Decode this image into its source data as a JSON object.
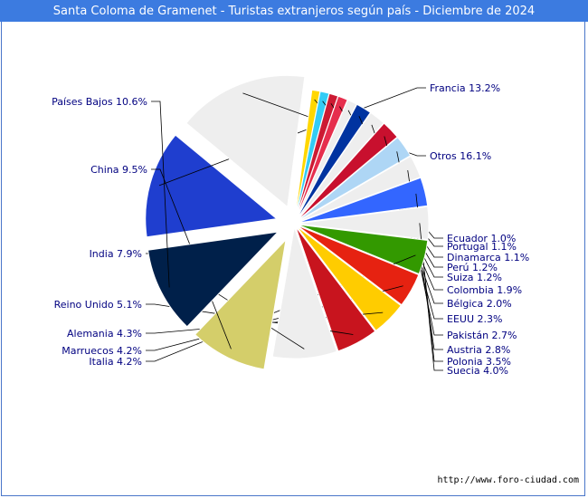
{
  "header": {
    "title": "Santa Coloma de Gramenet - Turistas extranjeros según país - Diciembre de 2024"
  },
  "footer": {
    "url": "http://www.foro-ciudad.com"
  },
  "chart_data": {
    "type": "pie",
    "title": "Santa Coloma de Gramenet - Turistas extranjeros según país - Diciembre de 2024",
    "slices": [
      {
        "label": "Francia 13.2%",
        "value": 13.2,
        "color": "#1f3ecf"
      },
      {
        "label": "Otros 16.1%",
        "value": 16.1,
        "color": "#eeeeee"
      },
      {
        "label": "Ecuador 1.0%",
        "value": 1.0,
        "color": "#ffd700"
      },
      {
        "label": "Portugal 1.1%",
        "value": 1.1,
        "color": "#33ccf5"
      },
      {
        "label": "Dinamarca 1.1%",
        "value": 1.1,
        "color": "#cc1a33"
      },
      {
        "label": "Perú 1.2%",
        "value": 1.2,
        "color": "#e62e4d"
      },
      {
        "label": "Suiza 1.2%",
        "value": 1.2,
        "color": "#eeeeee"
      },
      {
        "label": "Colombia 1.9%",
        "value": 1.9,
        "color": "#0033a0"
      },
      {
        "label": "Bélgica 2.0%",
        "value": 2.0,
        "color": "#eeeeee"
      },
      {
        "label": "EEUU 2.3%",
        "value": 2.3,
        "color": "#c8102e"
      },
      {
        "label": "Pakistán 2.7%",
        "value": 2.7,
        "color": "#aed6f5"
      },
      {
        "label": "Austria 2.8%",
        "value": 2.8,
        "color": "#eeeeee"
      },
      {
        "label": "Polonia 3.5%",
        "value": 3.5,
        "color": "#3366ff"
      },
      {
        "label": "Suecia 4.0%",
        "value": 4.0,
        "color": "#eeeeee"
      },
      {
        "label": "Italia 4.2%",
        "value": 4.2,
        "color": "#339900"
      },
      {
        "label": "Marruecos 4.2%",
        "value": 4.2,
        "color": "#e62211"
      },
      {
        "label": "Alemania 4.3%",
        "value": 4.3,
        "color": "#ffcc00"
      },
      {
        "label": "Reino Unido 5.1%",
        "value": 5.1,
        "color": "#c8141e"
      },
      {
        "label": "India 7.9%",
        "value": 7.9,
        "color": "#eeeeee"
      },
      {
        "label": "China 9.5%",
        "value": 9.5,
        "color": "#d4ce6a"
      },
      {
        "label": "Países Bajos 10.6%",
        "value": 10.6,
        "color": "#00204a"
      }
    ],
    "label_color": "#000080"
  }
}
